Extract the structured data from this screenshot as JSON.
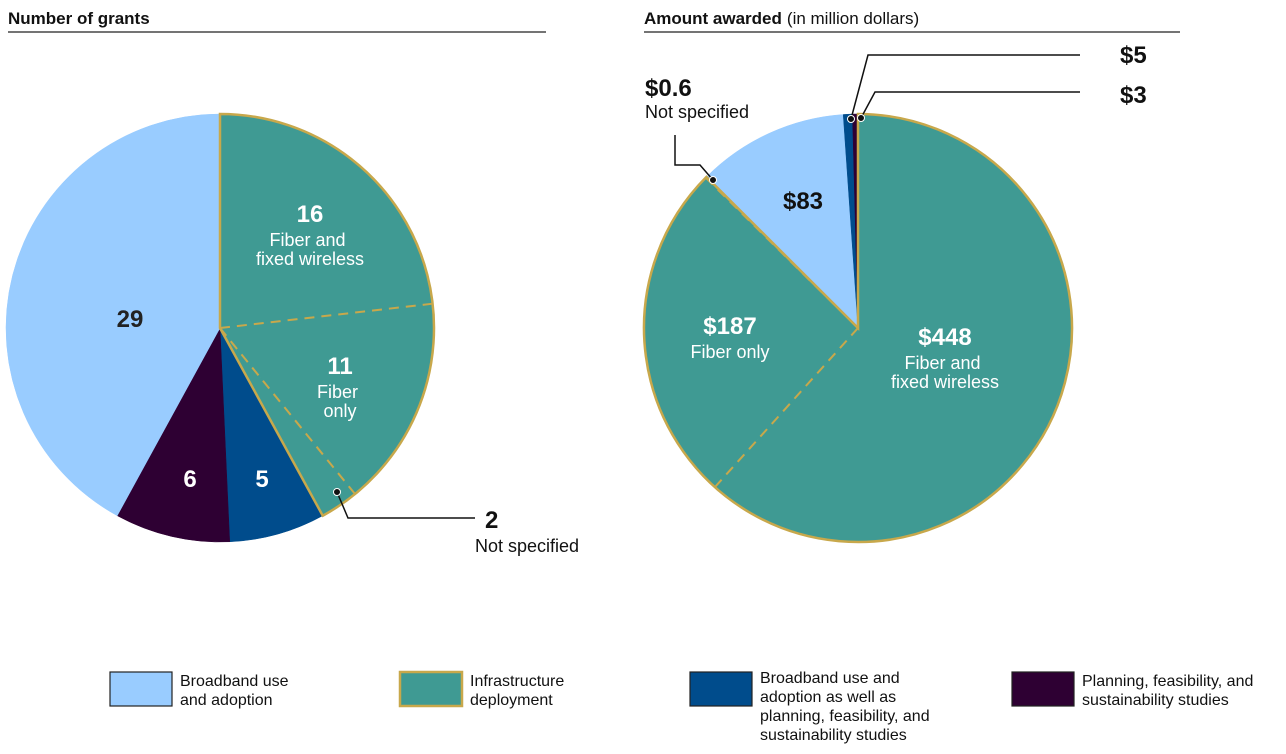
{
  "chart_data": [
    {
      "type": "pie",
      "title": "Number of grants",
      "values": [
        16,
        11,
        2,
        5,
        6,
        29
      ],
      "categories": [
        "Fiber and fixed wireless",
        "Fiber only",
        "Not specified",
        null,
        null,
        null
      ],
      "colors": [
        "#3f9a93",
        "#3f9a93",
        "#3f9a93",
        "#004c8c",
        "#2e0033",
        "#99ccff"
      ]
    },
    {
      "type": "pie",
      "title": "Amount awarded",
      "subtitle": "(in million dollars)",
      "values": [
        448,
        187,
        0.6,
        83,
        5,
        3
      ],
      "value_labels": [
        "$448",
        "$187",
        "$0.6",
        "$83",
        "$5",
        "$3"
      ],
      "categories": [
        "Fiber and fixed wireless",
        "Fiber only",
        "Not specified",
        null,
        null,
        null
      ],
      "colors": [
        "#3f9a93",
        "#3f9a93",
        "#3f9a93",
        "#99ccff",
        "#004c8c",
        "#2e0033"
      ]
    }
  ],
  "legend": [
    {
      "label": "Broadband use and adoption",
      "color": "#99ccff"
    },
    {
      "label": "Infrastructure deployment",
      "color": "#3f9a93"
    },
    {
      "label": "Broadband use and adoption as well as planning, feasibility, and sustainability studies",
      "color": "#004c8c"
    },
    {
      "label": "Planning, feasibility, and sustainability studies",
      "color": "#2e0033"
    }
  ]
}
